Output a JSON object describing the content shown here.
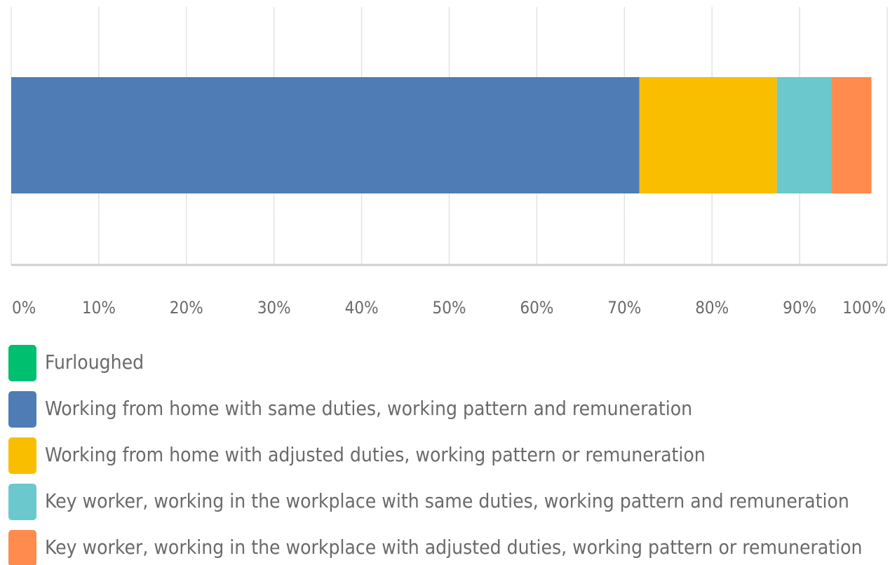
{
  "chart_data": {
    "type": "bar",
    "orientation": "horizontal",
    "stacked": true,
    "categories": [
      null
    ],
    "series": [
      {
        "name": "Furloughed",
        "color": "#00bf6f",
        "values": [
          0
        ]
      },
      {
        "name": "Working from home with same duties, working pattern and remuneration",
        "color": "#507cb6",
        "values": [
          71.7
        ]
      },
      {
        "name": "Working from home with adjusted duties, working pattern or remuneration",
        "color": "#f9be00",
        "values": [
          15.7
        ]
      },
      {
        "name": "Key worker, working in the workplace with same duties, working pattern and remuneration",
        "color": "#6bc8cd",
        "values": [
          6.2
        ]
      },
      {
        "name": "Key worker, working in the workplace with adjusted duties, working pattern or remuneration",
        "color": "#ff8b4f",
        "values": [
          4.6
        ]
      }
    ],
    "xlim": [
      0,
      100
    ],
    "xticks": [
      {
        "value": 0,
        "label": "0%"
      },
      {
        "value": 10,
        "label": "10%"
      },
      {
        "value": 20,
        "label": "20%"
      },
      {
        "value": 30,
        "label": "30%"
      },
      {
        "value": 40,
        "label": "40%"
      },
      {
        "value": 50,
        "label": "50%"
      },
      {
        "value": 60,
        "label": "60%"
      },
      {
        "value": 70,
        "label": "70%"
      },
      {
        "value": 80,
        "label": "80%"
      },
      {
        "value": 90,
        "label": "90%"
      },
      {
        "value": 100,
        "label": "100%"
      }
    ],
    "grid": true,
    "legend": "bottom"
  }
}
